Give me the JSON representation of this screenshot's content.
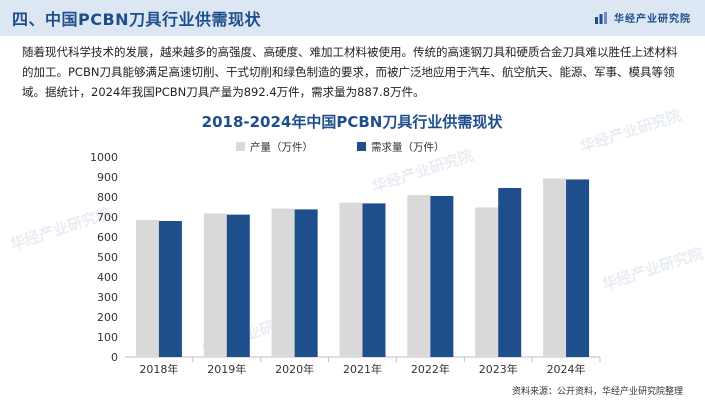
{
  "header": {
    "title": "四、中国PCBN刀具行业供需现状",
    "brand": "华经产业研究院"
  },
  "intro": "随着现代科学技术的发展，越来越多的高强度、高硬度、难加工材料被使用。传统的高速钢刀具和硬质合金刀具难以胜任上述材料的加工。PCBN刀具能够满足高速切削、干式切削和绿色制造的要求，而被广泛地应用于汽车、航空航天、能源、军事、模具等领域。据统计，2024年我国PCBN刀具产量为892.4万件，需求量为887.8万件。",
  "watermark": "华经产业研究院",
  "chart_data": {
    "type": "bar",
    "title": "2018-2024年中国PCBN刀具行业供需现状",
    "categories": [
      "2018年",
      "2019年",
      "2020年",
      "2021年",
      "2022年",
      "2023年",
      "2024年"
    ],
    "series": [
      {
        "name": "产量（万件）",
        "color": "#d9d9d9",
        "values": [
          685,
          718,
          742,
          772,
          810,
          748,
          892.4
        ]
      },
      {
        "name": "需求量（万件）",
        "color": "#1f4e8c",
        "values": [
          680,
          712,
          738,
          768,
          805,
          845,
          887.8
        ]
      }
    ],
    "ylim": [
      0,
      1000
    ],
    "yticks": [
      0,
      100,
      200,
      300,
      400,
      500,
      600,
      700,
      800,
      900,
      1000
    ],
    "xlabel": "",
    "ylabel": "",
    "grid": false,
    "legend": "top-left"
  },
  "source": "资料来源：公开资料，华经产业研究院整理",
  "colors": {
    "accent": "#1f4e8c",
    "header_bg": "#dde7f4",
    "title": "#1f4e8c"
  }
}
